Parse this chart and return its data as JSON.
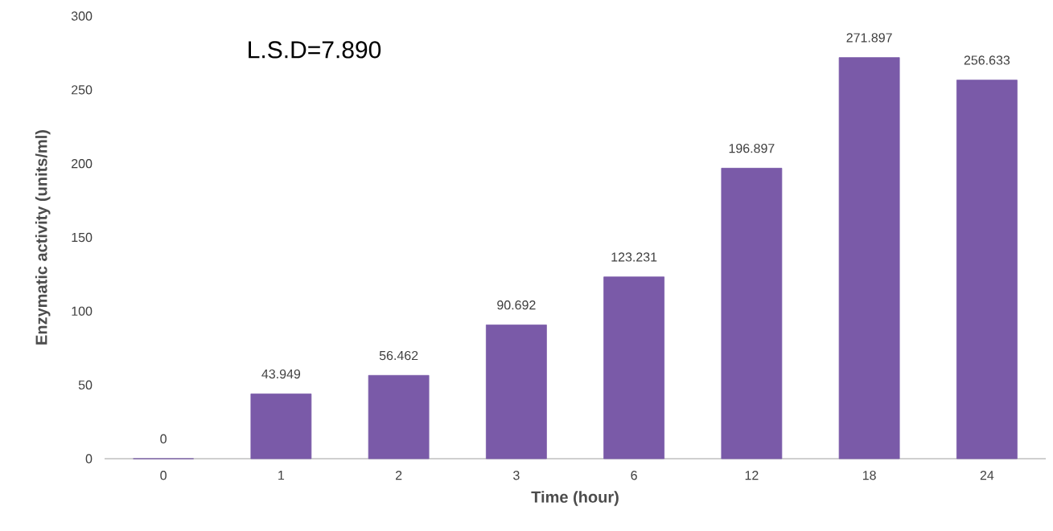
{
  "chart_data": {
    "type": "bar",
    "xlabel": "Time (hour)",
    "ylabel": "Enzymatic activity (units/ml)",
    "categories": [
      "0",
      "1",
      "2",
      "3",
      "6",
      "12",
      "18",
      "24"
    ],
    "values": [
      0,
      43.949,
      56.462,
      90.692,
      123.231,
      196.897,
      271.897,
      256.633
    ],
    "color": "#7a5aa8",
    "ylim": [
      0,
      300
    ],
    "yticks": [
      0,
      50,
      100,
      150,
      200,
      250,
      300
    ],
    "data_labels": true,
    "grid": false,
    "annotations": [
      "L.S.D=7.890"
    ]
  }
}
